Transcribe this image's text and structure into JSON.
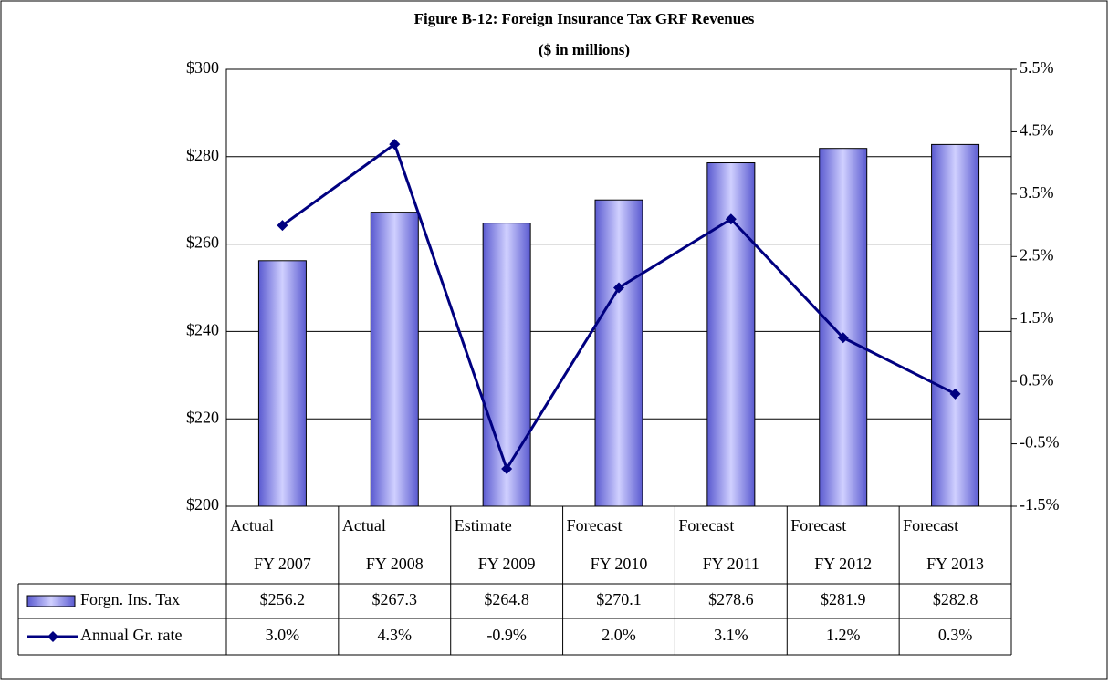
{
  "chart_data": {
    "type": "bar",
    "title": "Figure B-12: Foreign Insurance Tax GRF Revenues",
    "subtitle": "($ in millions)",
    "categories": [
      [
        "Actual",
        "FY 2007"
      ],
      [
        "Actual",
        "FY 2008"
      ],
      [
        "Estimate",
        "FY 2009"
      ],
      [
        "Forecast",
        "FY 2010"
      ],
      [
        "Forecast",
        "FY 2011"
      ],
      [
        "Forecast",
        "FY 2012"
      ],
      [
        "Forecast",
        "FY 2013"
      ]
    ],
    "series": [
      {
        "name": "Forgn. Ins. Tax",
        "type": "bar",
        "color": "#8080f0",
        "values": [
          256.2,
          267.3,
          264.8,
          270.1,
          278.6,
          281.9,
          282.8
        ],
        "value_labels": [
          "$256.2",
          "$267.3",
          "$264.8",
          "$270.1",
          "$278.6",
          "$281.9",
          "$282.8"
        ]
      },
      {
        "name": "Annual Gr. rate",
        "type": "line",
        "axis": "y2",
        "color": "#000080",
        "values": [
          3.0,
          4.3,
          -0.9,
          2.0,
          3.1,
          1.2,
          0.3
        ],
        "value_labels": [
          "3.0%",
          "4.3%",
          "-0.9%",
          "2.0%",
          "3.1%",
          "1.2%",
          "0.3%"
        ]
      }
    ],
    "ylim": [
      200,
      300
    ],
    "yticks": [
      {
        "value": 200,
        "label": "$200"
      },
      {
        "value": 220,
        "label": "$220"
      },
      {
        "value": 240,
        "label": "$240"
      },
      {
        "value": 260,
        "label": "$260"
      },
      {
        "value": 280,
        "label": "$280"
      },
      {
        "value": 300,
        "label": "$300"
      }
    ],
    "y2lim": [
      -1.5,
      5.5
    ],
    "y2ticks": [
      {
        "value": -1.5,
        "label": "-1.5%"
      },
      {
        "value": -0.5,
        "label": "-0.5%"
      },
      {
        "value": 0.5,
        "label": "0.5%"
      },
      {
        "value": 1.5,
        "label": "1.5%"
      },
      {
        "value": 2.5,
        "label": "2.5%"
      },
      {
        "value": 3.5,
        "label": "3.5%"
      },
      {
        "value": 4.5,
        "label": "4.5%"
      },
      {
        "value": 5.5,
        "label": "5.5%"
      }
    ],
    "grid": true
  }
}
